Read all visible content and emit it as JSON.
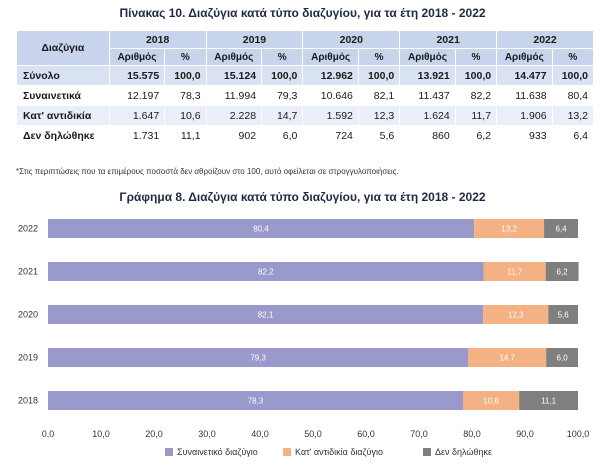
{
  "table": {
    "title": "Πίνακας 10. Διαζύγια κατά τύπο διαζυγίου, για τα έτη 2018 - 2022",
    "corner_header": "Διαζύγια",
    "sub_headers": {
      "count": "Αριθμός",
      "pct": "%"
    },
    "years": [
      "2018",
      "2019",
      "2020",
      "2021",
      "2022"
    ],
    "rows": [
      {
        "label": "Σύνολο",
        "kind": "total",
        "cells": [
          [
            "15.575",
            "100,0"
          ],
          [
            "15.124",
            "100,0"
          ],
          [
            "12.962",
            "100,0"
          ],
          [
            "13.921",
            "100,0"
          ],
          [
            "14.477",
            "100,0"
          ]
        ]
      },
      {
        "label": "Συναινετικά",
        "kind": "plain",
        "cells": [
          [
            "12.197",
            "78,3"
          ],
          [
            "11.994",
            "79,3"
          ],
          [
            "10.646",
            "82,1"
          ],
          [
            "11.437",
            "82,2"
          ],
          [
            "11.638",
            "80,4"
          ]
        ]
      },
      {
        "label": "Κατ' αντιδικία",
        "kind": "alt",
        "cells": [
          [
            "1.647",
            "10,6"
          ],
          [
            "2.228",
            "14,7"
          ],
          [
            "1.592",
            "12,3"
          ],
          [
            "1.624",
            "11,7"
          ],
          [
            "1.906",
            "13,2"
          ]
        ]
      },
      {
        "label": "Δεν δηλώθηκε",
        "kind": "plain",
        "cells": [
          [
            "1.731",
            "11,1"
          ],
          [
            "902",
            "6,0"
          ],
          [
            "724",
            "5,6"
          ],
          [
            "860",
            "6,2"
          ],
          [
            "933",
            "6,4"
          ]
        ]
      }
    ],
    "footnote": "*Στις περιπτώσεις που τα επιμέρους ποσοστά δεν αθροίζουν στο 100, αυτό οφείλεται σε στρογγυλοποιήσεις."
  },
  "chart_data": {
    "type": "bar",
    "orientation": "horizontal",
    "stacked": true,
    "title": "Γράφημα 8. Διαζύγια κατά τύπο διαζυγίου, για τα έτη 2018 - 2022",
    "categories": [
      "2022",
      "2021",
      "2020",
      "2019",
      "2018"
    ],
    "series": [
      {
        "name": "Συναινετικό διαζύγιο",
        "color": "#9999cc",
        "values": [
          80.4,
          82.2,
          82.1,
          79.3,
          78.3
        ],
        "labels": [
          "80,4",
          "82,2",
          "82,1",
          "79,3",
          "78,3"
        ]
      },
      {
        "name": "Κατ' αντιδικία διαζύγιο",
        "color": "#f4b183",
        "values": [
          13.2,
          11.7,
          12.3,
          14.7,
          10.6
        ],
        "labels": [
          "13,2",
          "11,7",
          "12,3",
          "14,7",
          "10,6"
        ]
      },
      {
        "name": "Δεν δηλώθηκε",
        "color": "#7f7f7f",
        "values": [
          6.4,
          6.2,
          5.6,
          6.0,
          11.1
        ],
        "labels": [
          "6,4",
          "6,2",
          "5,6",
          "6,0",
          "11,1"
        ]
      }
    ],
    "xlim": [
      0,
      100
    ],
    "xticks": [
      "0,0",
      "10,0",
      "20,0",
      "30,0",
      "40,0",
      "50,0",
      "60,0",
      "70,0",
      "80,0",
      "90,0",
      "100,0"
    ],
    "legend_position": "bottom",
    "grid": false
  }
}
